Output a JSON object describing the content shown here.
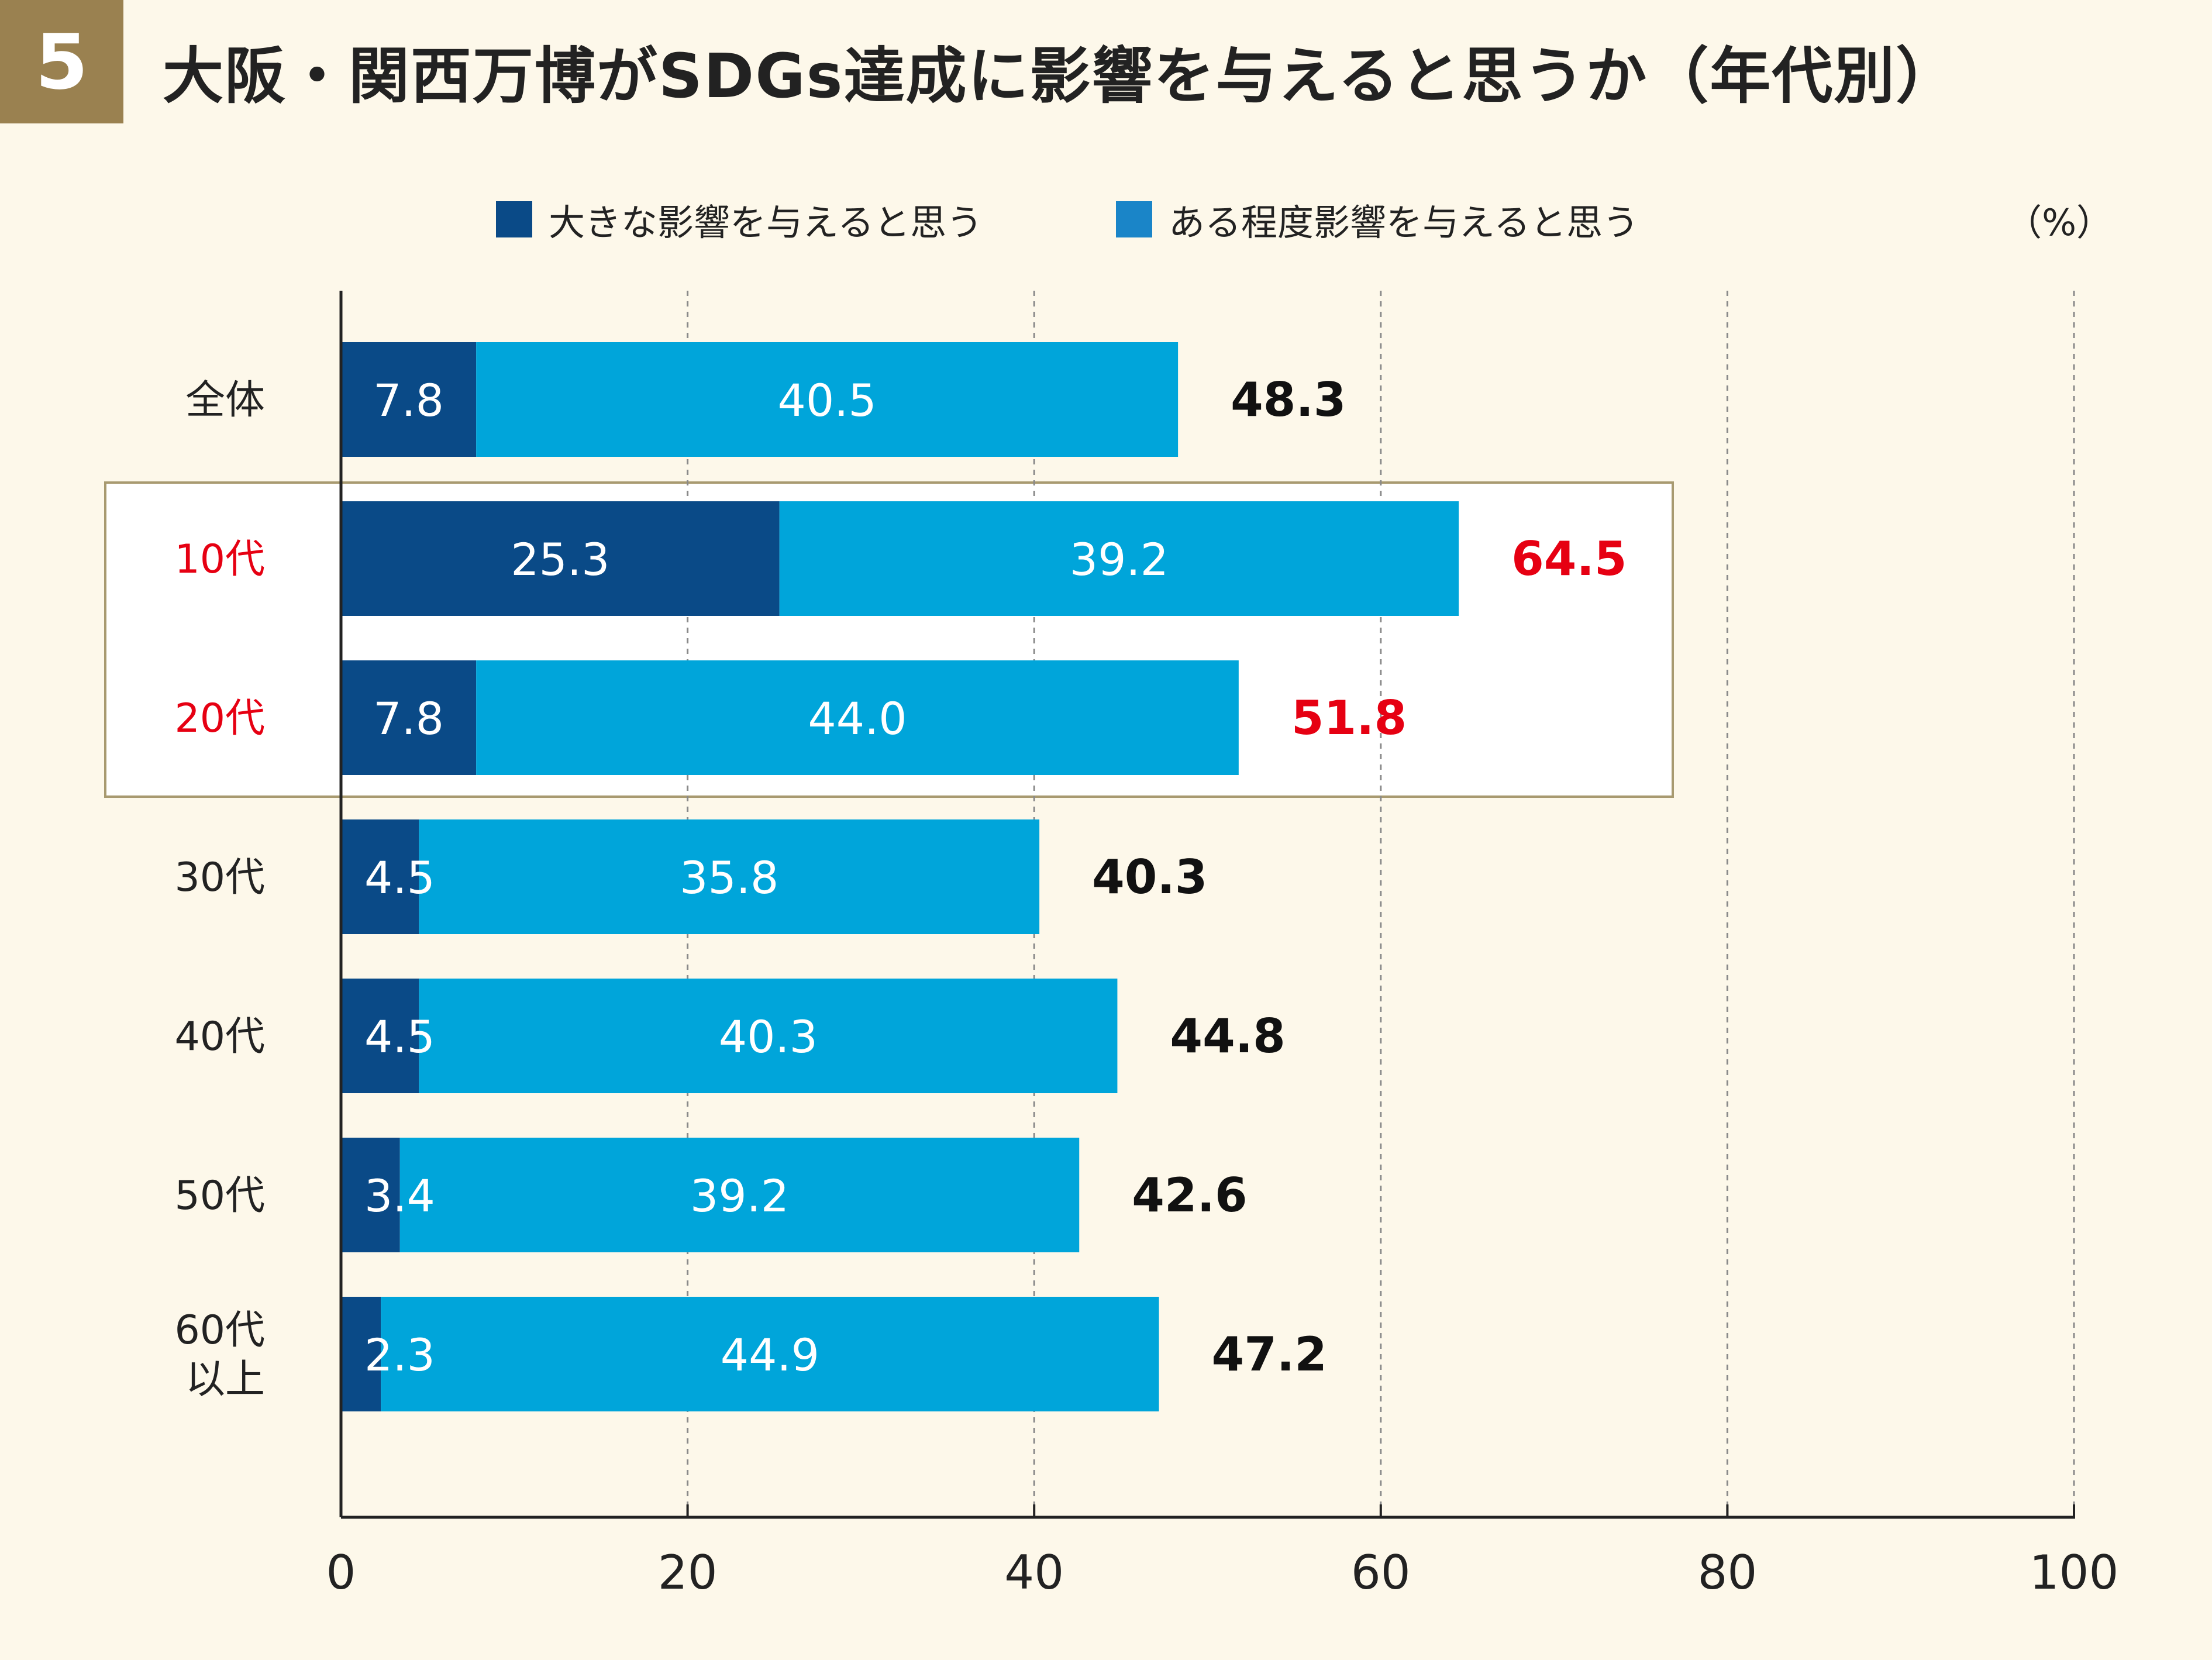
{
  "header": {
    "badge": "5",
    "title": "大阪・関西万博がSDGs達成に影響を与えると思うか（年代別）"
  },
  "legend": {
    "items": [
      {
        "label": "大きな影響を与えると思う",
        "color": "#0a4a87"
      },
      {
        "label": "ある程度影響を与えると思う",
        "color": "#00a5da"
      }
    ]
  },
  "unit_label": "（%）",
  "colors": {
    "strong": "#0a4a87",
    "some": "#00a5da",
    "highlight_text": "#e60012",
    "normal_text": "#111111",
    "highlight_box": "#a89a70",
    "background": "#fdf8ea"
  },
  "chart_data": {
    "type": "bar",
    "orientation": "horizontal",
    "stacked": true,
    "title": "大阪・関西万博がSDGs達成に影響を与えると思うか（年代別）",
    "xlabel": "",
    "ylabel": "",
    "xlim": [
      0,
      100
    ],
    "x_ticks": [
      "0",
      "20",
      "40",
      "60",
      "80",
      "100"
    ],
    "categories": [
      "全体",
      "10代",
      "20代",
      "30代",
      "40代",
      "50代",
      "60代\n以上"
    ],
    "highlighted": [
      false,
      true,
      true,
      false,
      false,
      false,
      false
    ],
    "series": [
      {
        "name": "大きな影響を与えると思う",
        "values": [
          7.8,
          25.3,
          7.8,
          4.5,
          4.5,
          3.4,
          2.3
        ],
        "labels": [
          "7.8",
          "25.3",
          "7.8",
          "4.5",
          "4.5",
          "3.4",
          "2.3"
        ]
      },
      {
        "name": "ある程度影響を与えると思う",
        "values": [
          40.5,
          39.2,
          44.0,
          35.8,
          40.3,
          39.2,
          44.9
        ],
        "labels": [
          "40.5",
          "39.2",
          "44.0",
          "35.8",
          "40.3",
          "39.2",
          "44.9"
        ]
      }
    ],
    "totals": [
      48.3,
      64.5,
      51.8,
      40.3,
      44.8,
      42.6,
      47.2
    ],
    "total_labels": [
      "48.3",
      "64.5",
      "51.8",
      "40.3",
      "44.8",
      "42.6",
      "47.2"
    ],
    "grid": "vertical dashed",
    "legend_position": "top"
  }
}
